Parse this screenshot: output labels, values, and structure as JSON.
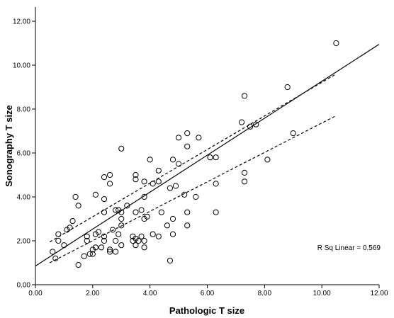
{
  "chart_data": {
    "type": "scatter",
    "xlabel": "Pathologic T size",
    "ylabel": "Sonography T size",
    "xlim": [
      0,
      12
    ],
    "ylim": [
      0,
      12
    ],
    "x_ticks": [
      "0.00",
      "2.00",
      "4.00",
      "6.00",
      "8.00",
      "10.00",
      "12.00"
    ],
    "y_ticks": [
      "0.00",
      "2.00",
      "4.00",
      "6.00",
      "8.00",
      "10.00",
      "12.00"
    ],
    "grid": false,
    "annotation": "R Sq Linear = 0.569",
    "fit_line": {
      "x": [
        0,
        12
      ],
      "y": [
        0.85,
        10.95
      ]
    },
    "ci_upper": {
      "x": [
        0.5,
        10.5
      ],
      "y": [
        1.95,
        9.6
      ]
    },
    "ci_lower": {
      "x": [
        0.5,
        10.5
      ],
      "y": [
        1.0,
        7.7
      ]
    },
    "points": [
      [
        0.6,
        1.5
      ],
      [
        0.7,
        1.2
      ],
      [
        0.8,
        2.3
      ],
      [
        0.8,
        2.0
      ],
      [
        1.0,
        1.8
      ],
      [
        1.1,
        2.5
      ],
      [
        1.2,
        2.6
      ],
      [
        1.3,
        2.9
      ],
      [
        1.4,
        4.0
      ],
      [
        1.5,
        3.6
      ],
      [
        1.5,
        0.9
      ],
      [
        1.7,
        1.3
      ],
      [
        1.8,
        2.2
      ],
      [
        1.8,
        2.0
      ],
      [
        1.9,
        1.4
      ],
      [
        2.0,
        1.4
      ],
      [
        2.0,
        1.6
      ],
      [
        2.1,
        1.7
      ],
      [
        2.1,
        2.3
      ],
      [
        2.1,
        4.1
      ],
      [
        2.2,
        2.4
      ],
      [
        2.3,
        1.7
      ],
      [
        2.4,
        2.0
      ],
      [
        2.4,
        2.2
      ],
      [
        2.4,
        3.3
      ],
      [
        2.4,
        3.9
      ],
      [
        2.4,
        4.9
      ],
      [
        2.6,
        1.5
      ],
      [
        2.6,
        1.6
      ],
      [
        2.6,
        4.6
      ],
      [
        2.6,
        5.0
      ],
      [
        2.7,
        2.5
      ],
      [
        2.8,
        1.5
      ],
      [
        2.8,
        2.0
      ],
      [
        2.8,
        3.4
      ],
      [
        2.9,
        2.3
      ],
      [
        2.9,
        3.4
      ],
      [
        3.0,
        1.8
      ],
      [
        3.0,
        2.7
      ],
      [
        3.0,
        3.0
      ],
      [
        3.0,
        3.3
      ],
      [
        3.0,
        6.2
      ],
      [
        3.2,
        3.6
      ],
      [
        3.4,
        2.0
      ],
      [
        3.4,
        2.2
      ],
      [
        3.5,
        1.8
      ],
      [
        3.5,
        2.1
      ],
      [
        3.5,
        3.3
      ],
      [
        3.5,
        4.8
      ],
      [
        3.5,
        5.0
      ],
      [
        3.6,
        2.0
      ],
      [
        3.7,
        2.2
      ],
      [
        3.7,
        3.4
      ],
      [
        3.8,
        1.7
      ],
      [
        3.8,
        2.0
      ],
      [
        3.8,
        3.0
      ],
      [
        3.8,
        4.0
      ],
      [
        3.8,
        4.7
      ],
      [
        3.9,
        3.1
      ],
      [
        4.0,
        5.7
      ],
      [
        4.1,
        2.3
      ],
      [
        4.1,
        4.6
      ],
      [
        4.3,
        2.2
      ],
      [
        4.3,
        4.7
      ],
      [
        4.3,
        5.2
      ],
      [
        4.4,
        3.3
      ],
      [
        4.6,
        2.7
      ],
      [
        4.7,
        1.1
      ],
      [
        4.7,
        4.4
      ],
      [
        4.8,
        2.3
      ],
      [
        4.8,
        3.0
      ],
      [
        4.8,
        5.7
      ],
      [
        4.9,
        4.5
      ],
      [
        5.0,
        5.5
      ],
      [
        5.0,
        6.7
      ],
      [
        5.2,
        4.1
      ],
      [
        5.3,
        2.7
      ],
      [
        5.3,
        3.3
      ],
      [
        5.3,
        6.3
      ],
      [
        5.3,
        6.9
      ],
      [
        5.6,
        4.0
      ],
      [
        5.7,
        6.7
      ],
      [
        6.1,
        5.8
      ],
      [
        6.3,
        3.3
      ],
      [
        6.3,
        4.6
      ],
      [
        6.3,
        5.8
      ],
      [
        7.2,
        7.4
      ],
      [
        7.3,
        4.7
      ],
      [
        7.3,
        5.1
      ],
      [
        7.3,
        8.6
      ],
      [
        7.5,
        7.2
      ],
      [
        7.7,
        7.3
      ],
      [
        8.1,
        5.7
      ],
      [
        8.8,
        9.0
      ],
      [
        9.0,
        6.9
      ],
      [
        10.5,
        11.0
      ]
    ]
  }
}
